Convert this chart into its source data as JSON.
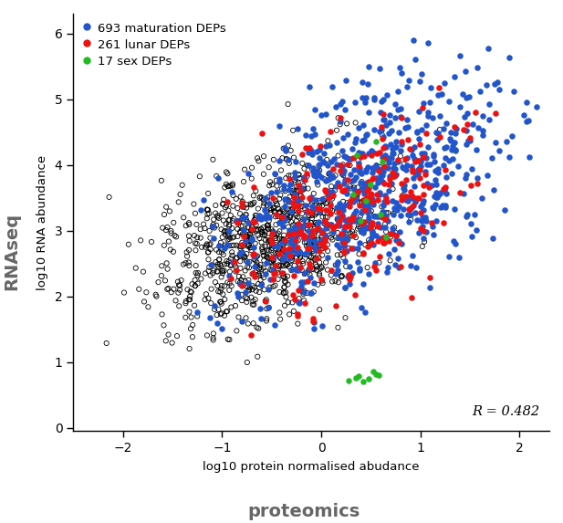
{
  "title": "",
  "xlabel": "log10 protein normalised abudance",
  "ylabel": "log10 RNA abundance",
  "x_label_big": "proteomics",
  "y_label_big": "RNAseq",
  "xlim": [
    -2.5,
    2.3
  ],
  "ylim": [
    -0.05,
    6.3
  ],
  "xticks": [
    -2,
    -1,
    0,
    1,
    2
  ],
  "yticks": [
    0,
    1,
    2,
    3,
    4,
    5,
    6
  ],
  "correlation": "R = 0.482",
  "legend_labels": [
    "693 maturation DEPs",
    "261 lunar DEPs",
    "17 sex DEPs"
  ],
  "legend_colors": [
    "#2255CC",
    "#EE1111",
    "#22BB22"
  ],
  "background_color": "#ffffff",
  "point_size_colored": 22,
  "point_size_black": 14,
  "seed": 42,
  "n_black": 950,
  "n_blue": 693,
  "n_red": 261,
  "n_green": 17
}
